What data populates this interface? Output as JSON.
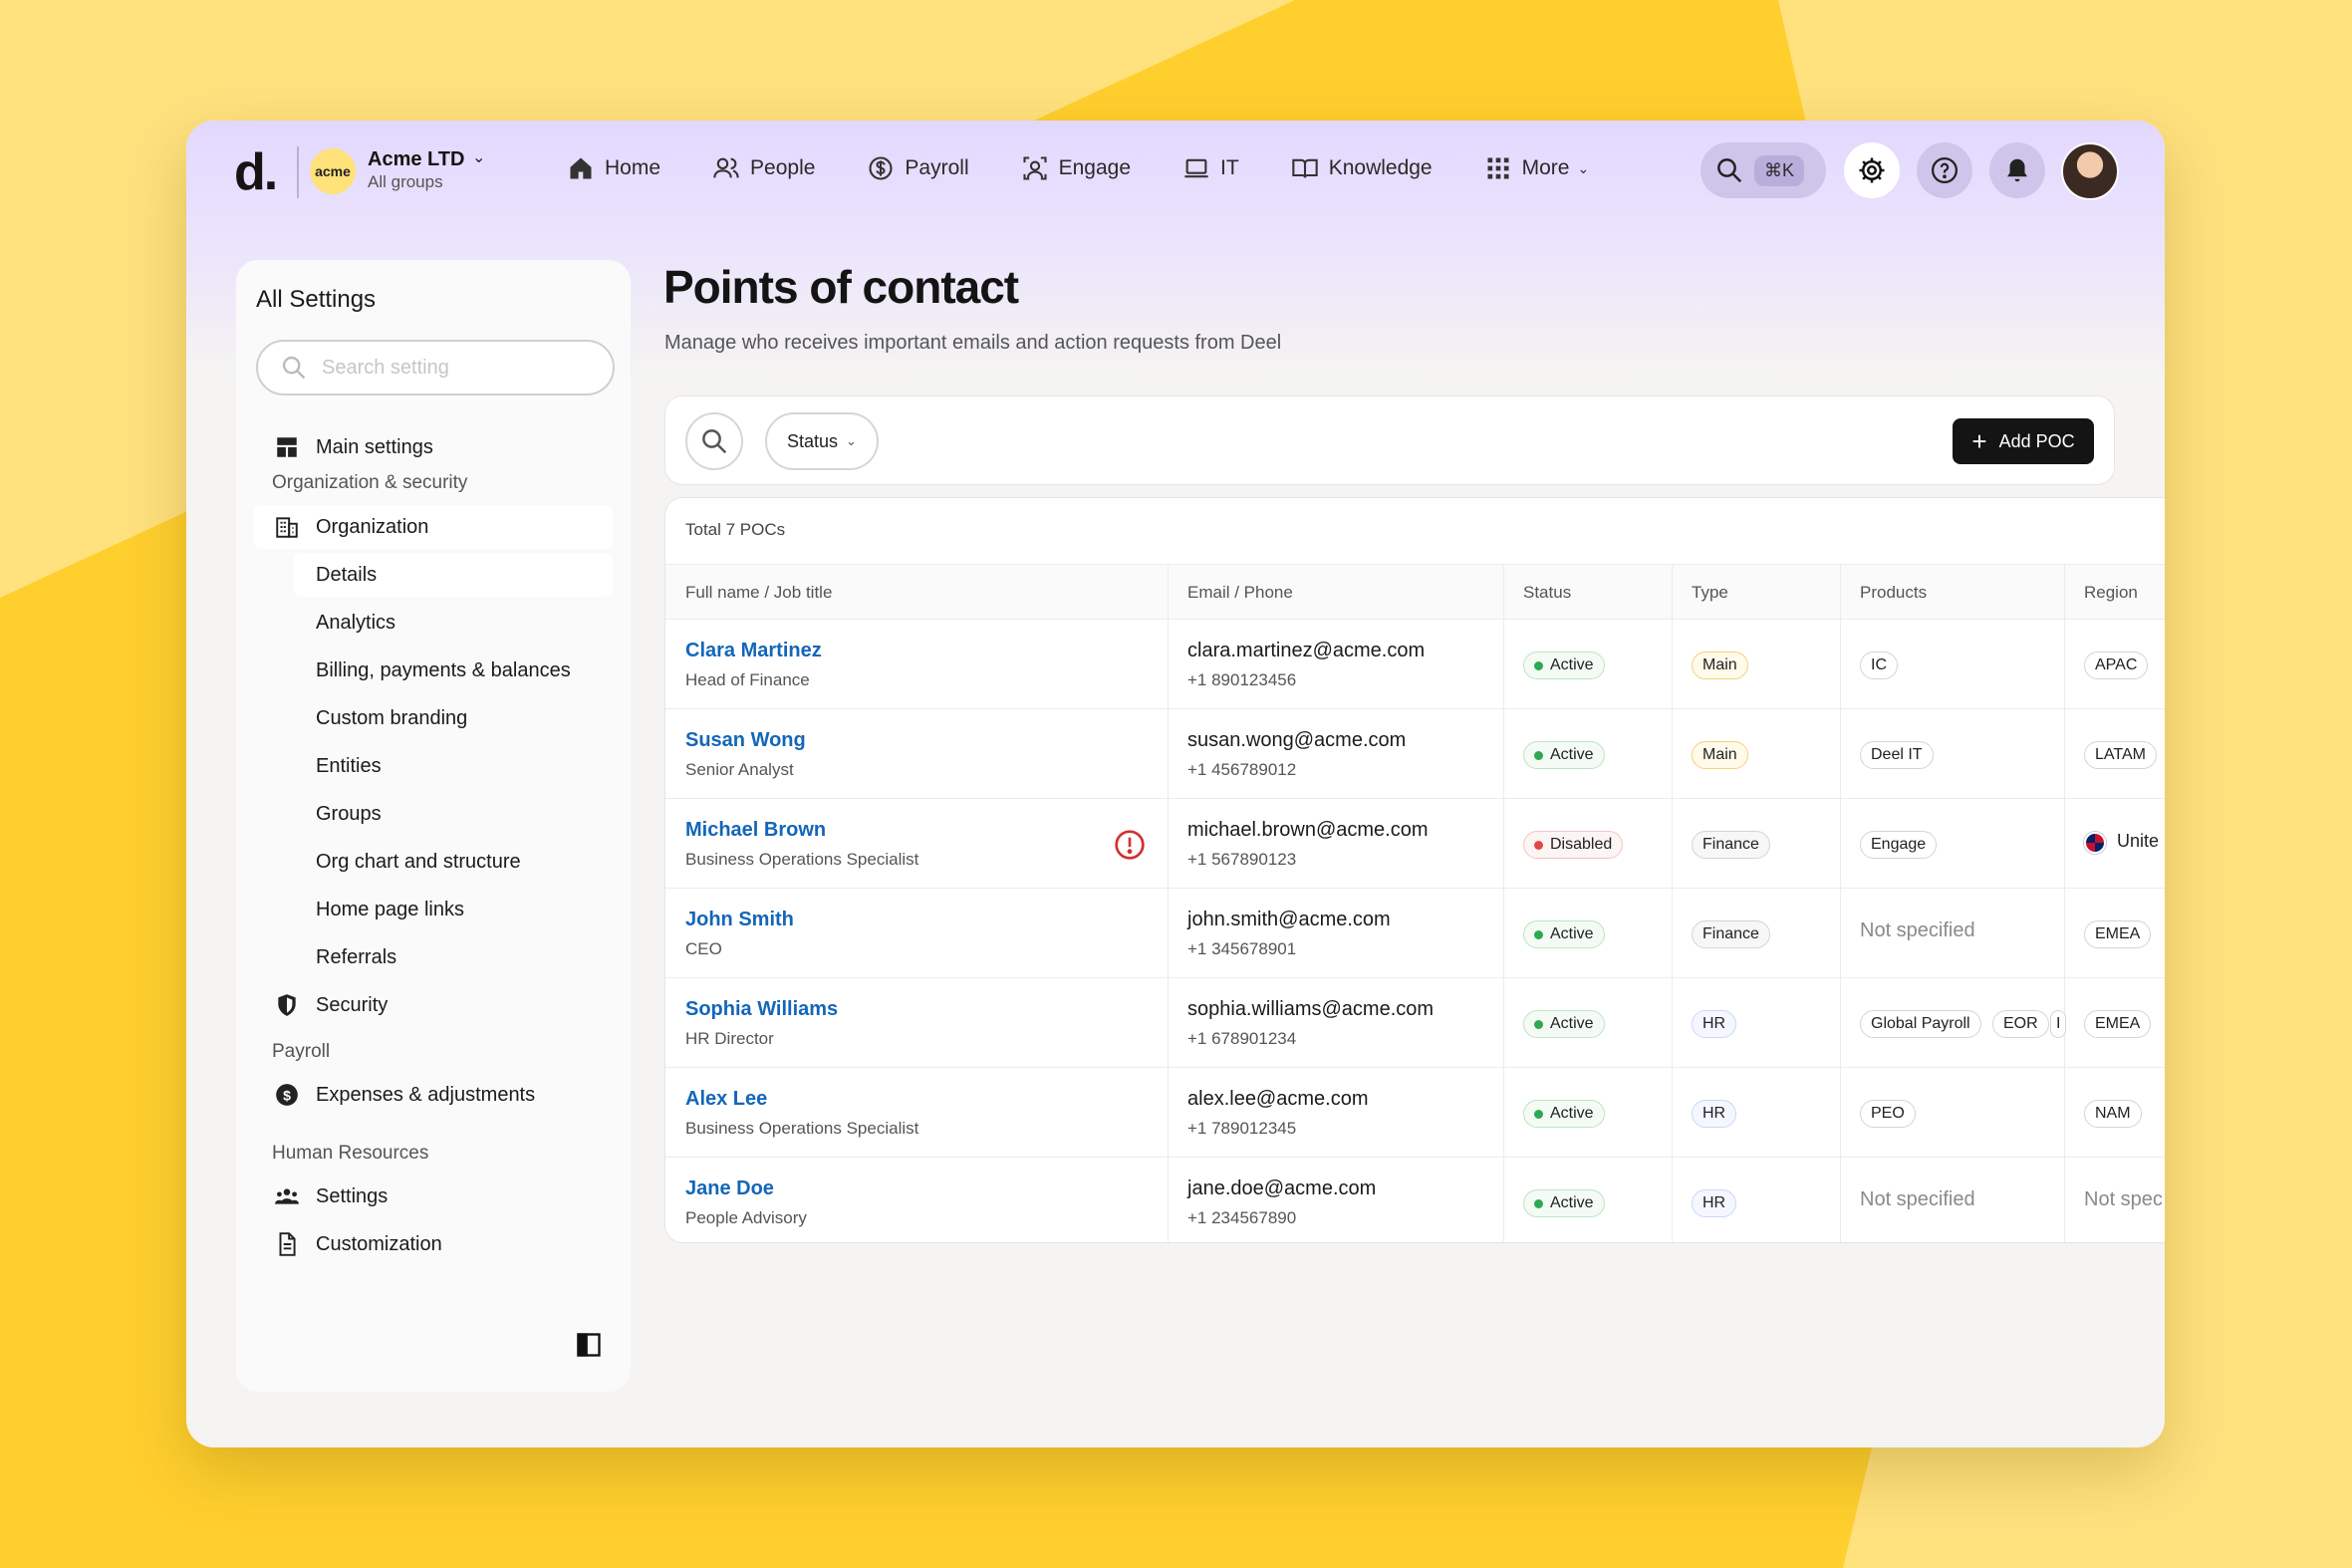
{
  "app": {
    "logo": "d.",
    "company_badge": "acme",
    "company_name": "Acme LTD",
    "company_sub": "All groups",
    "nav": [
      {
        "label": "Home",
        "icon": "home-icon"
      },
      {
        "label": "People",
        "icon": "people-icon"
      },
      {
        "label": "Payroll",
        "icon": "dollar-icon"
      },
      {
        "label": "Engage",
        "icon": "engage-icon"
      },
      {
        "label": "IT",
        "icon": "laptop-icon"
      },
      {
        "label": "Knowledge",
        "icon": "book-icon"
      },
      {
        "label": "More",
        "icon": "grid-icon"
      }
    ],
    "search_shortcut": "⌘K"
  },
  "sidebar": {
    "title": "All Settings",
    "search_placeholder": "Search setting",
    "main_settings": "Main settings",
    "section_org": "Organization & security",
    "organization": "Organization",
    "org_items": [
      "Details",
      "Analytics",
      "Billing, payments & balances",
      "Custom branding",
      "Entities",
      "Groups",
      "Org chart and structure",
      "Home page links",
      "Referrals"
    ],
    "security": "Security",
    "section_payroll": "Payroll",
    "expenses": "Expenses & adjustments",
    "section_hr": "Human Resources",
    "hr_settings": "Settings",
    "customization": "Customization"
  },
  "main": {
    "title": "Points of contact",
    "subtitle": "Manage who receives important emails and action requests from Deel",
    "status_filter": "Status",
    "add_button": "Add POC",
    "total": "Total 7 POCs",
    "columns": [
      "Full name / Job title",
      "Email / Phone",
      "Status",
      "Type",
      "Products",
      "Region"
    ],
    "rows": [
      {
        "name": "Clara Martinez",
        "job": "Head of Finance",
        "email": "clara.martinez@acme.com",
        "phone": "+1 890123456",
        "status": "Active",
        "type": "Main",
        "products": [
          "IC"
        ],
        "region": "APAC"
      },
      {
        "name": "Susan Wong",
        "job": "Senior Analyst",
        "email": "susan.wong@acme.com",
        "phone": "+1 456789012",
        "status": "Active",
        "type": "Main",
        "products": [
          "Deel IT"
        ],
        "region": "LATAM"
      },
      {
        "name": "Michael Brown",
        "job": "Business Operations Specialist",
        "email": "michael.brown@acme.com",
        "phone": "+1 567890123",
        "status": "Disabled",
        "type": "Finance",
        "products": [
          "Engage"
        ],
        "region": "Unite"
      },
      {
        "name": "John Smith",
        "job": "CEO",
        "email": "john.smith@acme.com",
        "phone": "+1 345678901",
        "status": "Active",
        "type": "Finance",
        "products_text": "Not specified",
        "region": "EMEA"
      },
      {
        "name": "Sophia Williams",
        "job": "HR Director",
        "email": "sophia.williams@acme.com",
        "phone": "+1 678901234",
        "status": "Active",
        "type": "HR",
        "products": [
          "Global Payroll",
          "EOR",
          "I"
        ],
        "region": "EMEA"
      },
      {
        "name": "Alex Lee",
        "job": "Business Operations Specialist",
        "email": "alex.lee@acme.com",
        "phone": "+1 789012345",
        "status": "Active",
        "type": "HR",
        "products": [
          "PEO"
        ],
        "region": "NAM"
      },
      {
        "name": "Jane Doe",
        "job": "People Advisory",
        "email": "jane.doe@acme.com",
        "phone": "+1 234567890",
        "status": "Active",
        "type": "HR",
        "products_text": "Not specified",
        "region_text": "Not spec"
      }
    ]
  },
  "colors": {
    "background": "#ffcf2e",
    "header": "#e2d8ff",
    "link": "#1466b8",
    "active": "#2fa84f",
    "disabled": "#e04848"
  }
}
